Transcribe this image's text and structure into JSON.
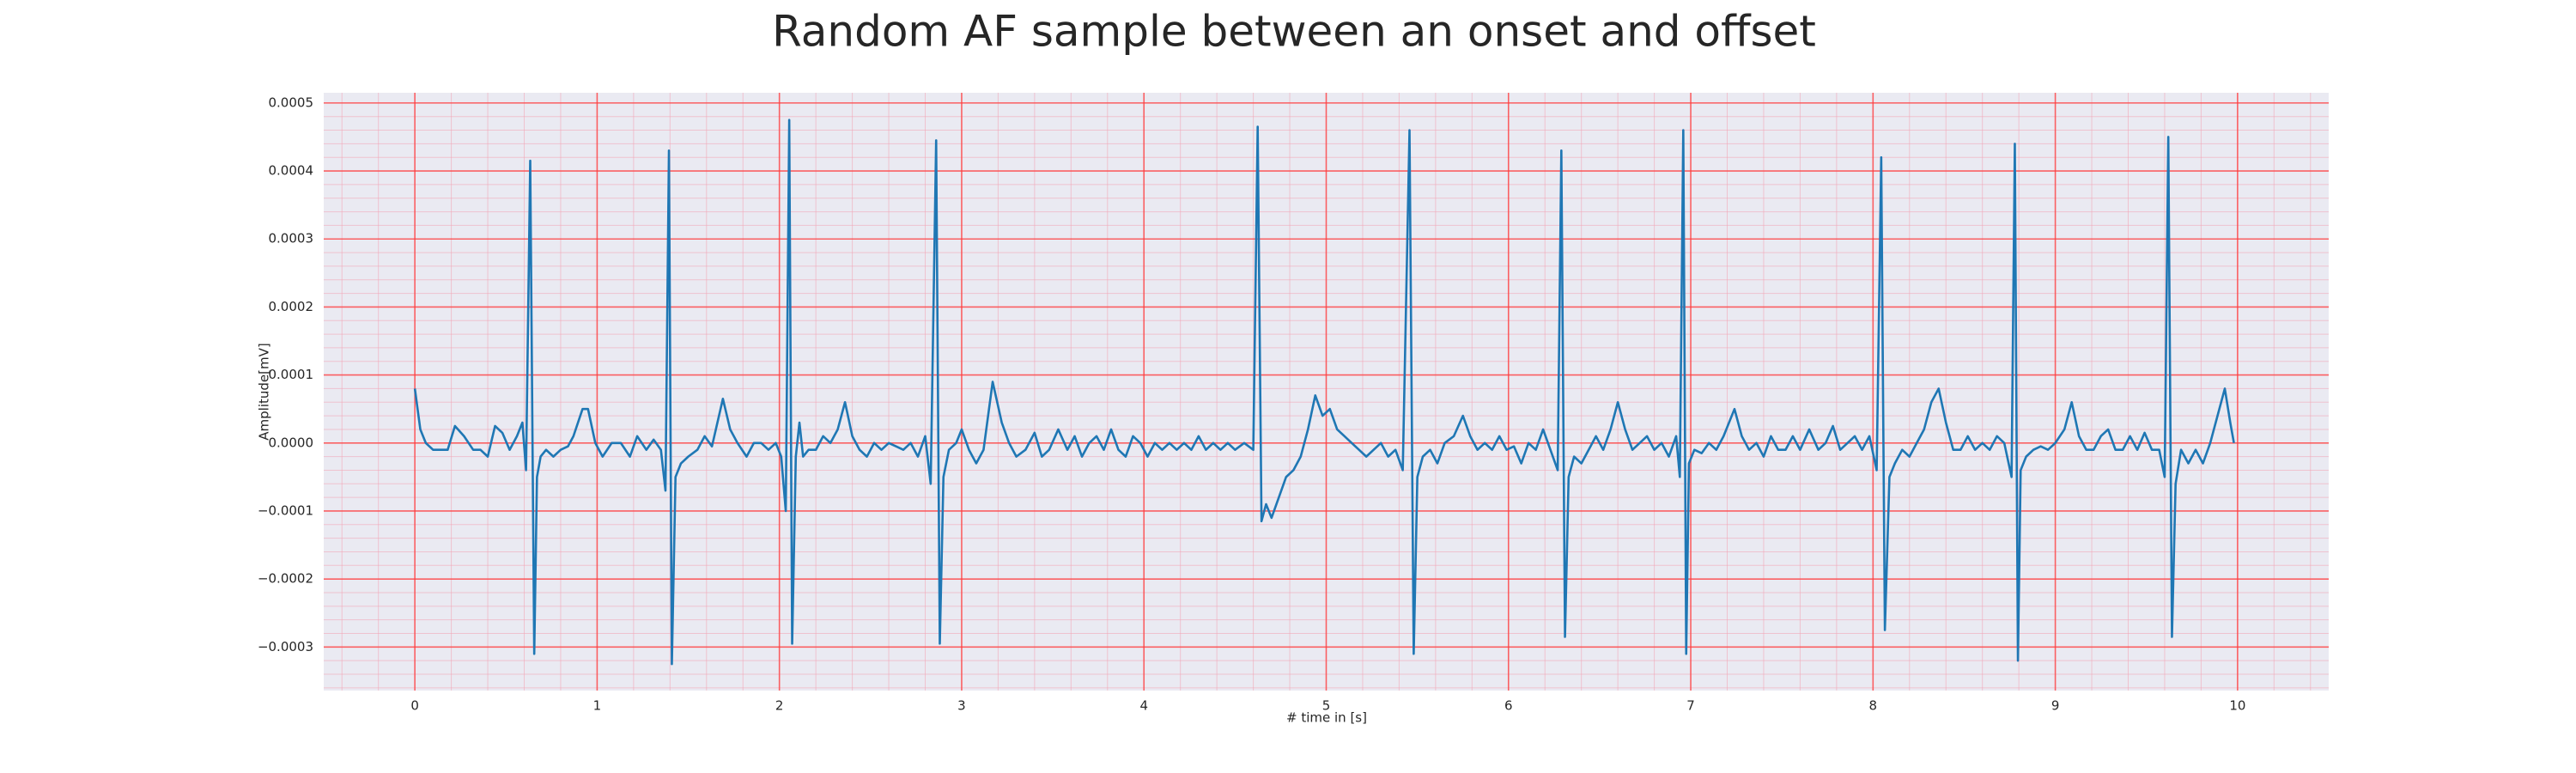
{
  "chart_data": {
    "type": "line",
    "title": "Random AF sample between an onset and offset",
    "xlabel": "# time in [s]",
    "ylabel": "Amplitude[mV]",
    "color": "#1f77b4",
    "grid": true,
    "minor_grid": true,
    "xlim": [
      -0.5,
      10.5
    ],
    "ylim": [
      -0.000364,
      0.000515
    ],
    "xticks": [
      0,
      1,
      2,
      3,
      4,
      5,
      6,
      7,
      8,
      9,
      10
    ],
    "yticks": [
      {
        "value": -0.0003,
        "label": "−0.0003"
      },
      {
        "value": -0.0002,
        "label": "−0.0002"
      },
      {
        "value": -0.0001,
        "label": "−0.0001"
      },
      {
        "value": 0,
        "label": "0.0000"
      },
      0.0001,
      0.0002,
      0.0003,
      0.0004,
      0.0005
    ],
    "x": [
      0,
      0.03,
      0.06,
      0.1,
      0.14,
      0.18,
      0.22,
      0.27,
      0.32,
      0.36,
      0.4,
      0.44,
      0.48,
      0.52,
      0.56,
      0.59,
      0.61,
      0.633,
      0.655,
      0.67,
      0.69,
      0.72,
      0.76,
      0.8,
      0.84,
      0.87,
      0.92,
      0.95,
      0.99,
      1.03,
      1.08,
      1.13,
      1.18,
      1.22,
      1.27,
      1.31,
      1.35,
      1.375,
      1.394,
      1.41,
      1.43,
      1.46,
      1.5,
      1.55,
      1.59,
      1.63,
      1.69,
      1.73,
      1.77,
      1.82,
      1.86,
      1.9,
      1.94,
      1.98,
      2.01,
      2.035,
      2.054,
      2.07,
      2.09,
      2.11,
      2.13,
      2.16,
      2.2,
      2.24,
      2.28,
      2.32,
      2.36,
      2.4,
      2.44,
      2.48,
      2.52,
      2.56,
      2.6,
      2.64,
      2.68,
      2.72,
      2.76,
      2.8,
      2.83,
      2.86,
      2.88,
      2.9,
      2.93,
      2.97,
      3.0,
      3.04,
      3.08,
      3.12,
      3.17,
      3.22,
      3.26,
      3.3,
      3.35,
      3.4,
      3.44,
      3.48,
      3.53,
      3.58,
      3.62,
      3.66,
      3.7,
      3.74,
      3.78,
      3.82,
      3.86,
      3.9,
      3.94,
      3.98,
      4.02,
      4.06,
      4.1,
      4.14,
      4.18,
      4.22,
      4.26,
      4.3,
      4.34,
      4.38,
      4.42,
      4.46,
      4.5,
      4.55,
      4.6,
      4.624,
      4.645,
      4.67,
      4.7,
      4.74,
      4.78,
      4.82,
      4.86,
      4.9,
      4.94,
      4.98,
      5.02,
      5.06,
      5.1,
      5.14,
      5.18,
      5.22,
      5.26,
      5.3,
      5.34,
      5.38,
      5.42,
      5.457,
      5.48,
      5.5,
      5.53,
      5.57,
      5.61,
      5.65,
      5.7,
      5.75,
      5.79,
      5.83,
      5.87,
      5.91,
      5.95,
      5.99,
      6.03,
      6.07,
      6.11,
      6.15,
      6.19,
      6.23,
      6.27,
      6.29,
      6.31,
      6.33,
      6.36,
      6.4,
      6.44,
      6.48,
      6.52,
      6.56,
      6.6,
      6.64,
      6.68,
      6.72,
      6.76,
      6.8,
      6.84,
      6.88,
      6.92,
      6.94,
      6.959,
      6.975,
      6.99,
      7.02,
      7.06,
      7.1,
      7.14,
      7.18,
      7.24,
      7.28,
      7.32,
      7.36,
      7.4,
      7.44,
      7.48,
      7.52,
      7.56,
      7.6,
      7.65,
      7.7,
      7.74,
      7.78,
      7.82,
      7.86,
      7.9,
      7.94,
      7.98,
      8.02,
      8.045,
      8.065,
      8.09,
      8.12,
      8.16,
      8.2,
      8.24,
      8.28,
      8.32,
      8.36,
      8.4,
      8.44,
      8.48,
      8.52,
      8.56,
      8.6,
      8.64,
      8.68,
      8.72,
      8.76,
      8.778,
      8.795,
      8.81,
      8.84,
      8.88,
      8.92,
      8.96,
      9.0,
      9.05,
      9.09,
      9.13,
      9.17,
      9.21,
      9.25,
      9.29,
      9.33,
      9.37,
      9.41,
      9.45,
      9.49,
      9.53,
      9.57,
      9.6,
      9.62,
      9.64,
      9.66,
      9.69,
      9.73,
      9.77,
      9.81,
      9.85,
      9.89,
      9.93,
      9.96,
      9.98
    ],
    "values": [
      8e-05,
      2e-05,
      0,
      -1e-05,
      -1e-05,
      -1e-05,
      2.5e-05,
      1e-05,
      -1e-05,
      -1e-05,
      -2e-05,
      2.5e-05,
      1.5e-05,
      -1e-05,
      1e-05,
      3e-05,
      -4e-05,
      0.000415,
      -0.00031,
      -5e-05,
      -2e-05,
      -1e-05,
      -2e-05,
      -1e-05,
      -5e-06,
      1e-05,
      5e-05,
      5e-05,
      0,
      -2e-05,
      0,
      0,
      -2e-05,
      1e-05,
      -1e-05,
      5e-06,
      -1e-05,
      -7e-05,
      0.00043,
      -0.000325,
      -5e-05,
      -3e-05,
      -2e-05,
      -1e-05,
      1e-05,
      -5e-06,
      6.5e-05,
      2e-05,
      0,
      -2e-05,
      0,
      0,
      -1e-05,
      0,
      -2e-05,
      -0.0001,
      0.000475,
      -0.000295,
      -2e-05,
      3e-05,
      -2e-05,
      -1e-05,
      -1e-05,
      1e-05,
      0,
      2e-05,
      6e-05,
      1e-05,
      -1e-05,
      -2e-05,
      0,
      -1e-05,
      0,
      -5e-06,
      -1e-05,
      0,
      -2e-05,
      1e-05,
      -6e-05,
      0.000445,
      -0.000295,
      -5e-05,
      -1e-05,
      0,
      2e-05,
      -1e-05,
      -3e-05,
      -1e-05,
      9e-05,
      3e-05,
      0,
      -2e-05,
      -1e-05,
      1.5e-05,
      -2e-05,
      -1e-05,
      2e-05,
      -1e-05,
      1e-05,
      -2e-05,
      0,
      1e-05,
      -1e-05,
      2e-05,
      -1e-05,
      -2e-05,
      1e-05,
      0,
      -2e-05,
      0,
      -1e-05,
      0,
      -1e-05,
      0,
      -1e-05,
      1e-05,
      -1e-05,
      0,
      -1e-05,
      0,
      -1e-05,
      0,
      -1e-05,
      0.000465,
      -0.000115,
      -9e-05,
      -0.00011,
      -8e-05,
      -5e-05,
      -4e-05,
      -2e-05,
      2e-05,
      7e-05,
      4e-05,
      5e-05,
      2e-05,
      1e-05,
      0,
      -1e-05,
      -2e-05,
      -1e-05,
      0,
      -2e-05,
      -1e-05,
      -4e-05,
      0.00046,
      -0.00031,
      -5e-05,
      -2e-05,
      -1e-05,
      -3e-05,
      0,
      1e-05,
      4e-05,
      1e-05,
      -1e-05,
      0,
      -1e-05,
      1e-05,
      -1e-05,
      -5e-06,
      -3e-05,
      0,
      -1e-05,
      2e-05,
      -1e-05,
      -4e-05,
      0.00043,
      -0.000285,
      -5e-05,
      -2e-05,
      -3e-05,
      -1e-05,
      1e-05,
      -1e-05,
      2e-05,
      6e-05,
      2e-05,
      -1e-05,
      0,
      1e-05,
      -1e-05,
      0,
      -2e-05,
      1e-05,
      -5e-05,
      0.00046,
      -0.00031,
      -3e-05,
      -1e-05,
      -1.5e-05,
      0,
      -1e-05,
      1e-05,
      5e-05,
      1e-05,
      -1e-05,
      0,
      -2e-05,
      1e-05,
      -1e-05,
      -1e-05,
      1e-05,
      -1e-05,
      2e-05,
      -1e-05,
      0,
      2.5e-05,
      -1e-05,
      0,
      1e-05,
      -1e-05,
      1e-05,
      -4e-05,
      0.00042,
      -0.000275,
      -5e-05,
      -3e-05,
      -1e-05,
      -2e-05,
      0,
      2e-05,
      6e-05,
      8e-05,
      3e-05,
      -1e-05,
      -1e-05,
      1e-05,
      -1e-05,
      0,
      -1e-05,
      1e-05,
      0,
      -5e-05,
      0.00044,
      -0.00032,
      -4e-05,
      -2e-05,
      -1e-05,
      -5e-06,
      -1e-05,
      0,
      2e-05,
      6e-05,
      1e-05,
      -1e-05,
      -1e-05,
      1e-05,
      2e-05,
      -1e-05,
      -1e-05,
      1e-05,
      -1e-05,
      1.5e-05,
      -1e-05,
      -1e-05,
      -5e-05,
      0.00045,
      -0.000285,
      -6e-05,
      -1e-05,
      -3e-05,
      -1e-05,
      -3e-05,
      0,
      4e-05,
      8e-05,
      3e-05,
      0
    ]
  }
}
